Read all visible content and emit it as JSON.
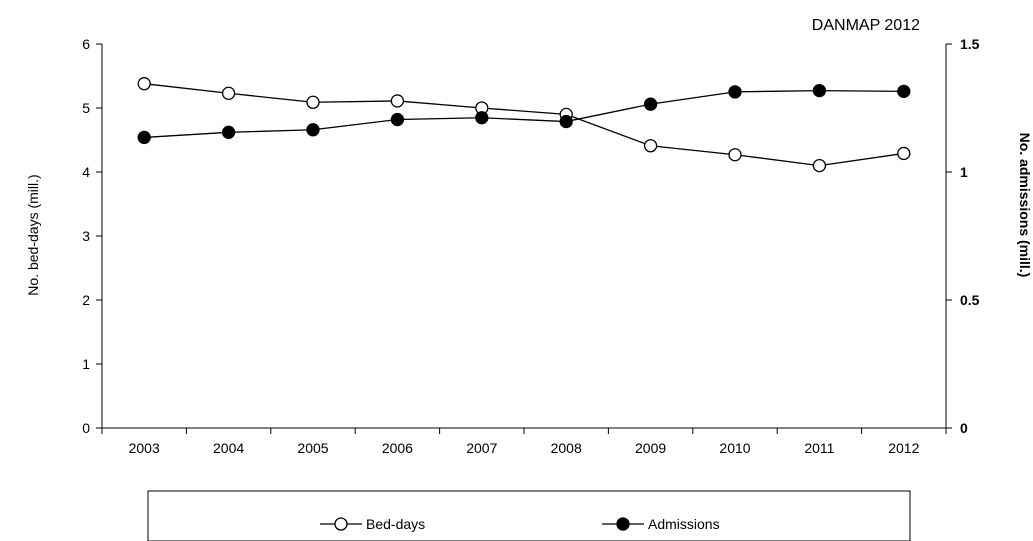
{
  "chart_data": {
    "type": "line",
    "source": "DANMAP 2012",
    "x": [
      "2003",
      "2004",
      "2005",
      "2006",
      "2007",
      "2008",
      "2009",
      "2010",
      "2011",
      "2012"
    ],
    "y_left": {
      "label": "No. bed-days (mill.)",
      "range": [
        0,
        6
      ],
      "ticks": [
        "0",
        "1",
        "2",
        "3",
        "4",
        "5",
        "6"
      ]
    },
    "y_right": {
      "label": "No. admissions (mill.)",
      "range": [
        0,
        1.5
      ],
      "ticks": [
        "0",
        "0.5",
        "1",
        "1.5"
      ]
    },
    "series": [
      {
        "name": "Bed-days",
        "axis": "left",
        "marker": "open-circle",
        "values": [
          5.38,
          5.23,
          5.09,
          5.11,
          5.0,
          4.9,
          4.41,
          4.27,
          4.1,
          4.29
        ]
      },
      {
        "name": "Admissions",
        "axis": "right",
        "marker": "filled-circle",
        "values": [
          1.135,
          1.155,
          1.165,
          1.205,
          1.212,
          1.197,
          1.265,
          1.313,
          1.318,
          1.315
        ]
      }
    ],
    "legend_position": "bottom",
    "grid": false
  }
}
